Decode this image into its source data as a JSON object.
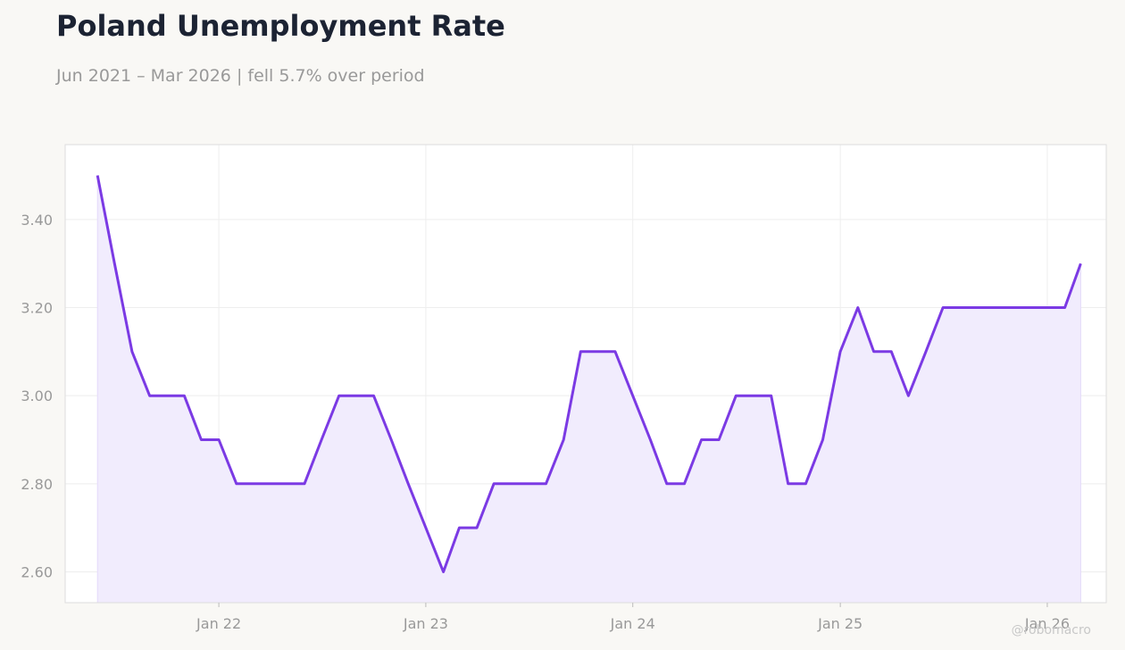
{
  "header": {
    "title": "Poland Unemployment Rate",
    "subtitle": "Jun 2021 – Mar 2026 | fell 5.7% over period"
  },
  "watermark": "@robomacro",
  "colors": {
    "line": "#7b3ae4",
    "fill": "#f1ecfd",
    "background": "#f9f8f5",
    "plot_background": "#ffffff"
  },
  "chart_data": {
    "type": "area",
    "title": "Poland Unemployment Rate",
    "subtitle": "Jun 2021 – Mar 2026 | fell 5.7% over period",
    "xlabel": "",
    "ylabel": "",
    "ylim": [
      2.53,
      3.57
    ],
    "xlim": [
      "2021-04-05",
      "2026-04-15"
    ],
    "grid": true,
    "y_ticks": [
      2.6,
      2.8,
      3.0,
      3.2,
      3.4
    ],
    "y_tick_labels": [
      "2.60",
      "2.80",
      "3.00",
      "3.20",
      "3.40"
    ],
    "x_ticks": [
      "2022-01-01",
      "2023-01-01",
      "2024-01-01",
      "2025-01-01",
      "2026-01-01"
    ],
    "x_tick_labels": [
      "Jan 22",
      "Jan 23",
      "Jan 24",
      "Jan 25",
      "Jan 26"
    ],
    "series": [
      {
        "x": [
          "2021-06-01",
          "2021-07-01",
          "2021-08-01",
          "2021-09-01",
          "2021-10-01",
          "2021-11-01",
          "2021-12-01",
          "2022-01-01",
          "2022-02-01",
          "2022-03-01",
          "2022-04-01",
          "2022-05-01",
          "2022-06-01",
          "2022-07-01",
          "2022-08-01",
          "2022-09-01",
          "2022-10-01",
          "2022-11-01",
          "2022-12-01",
          "2023-01-01",
          "2023-02-01",
          "2023-03-01",
          "2023-04-01",
          "2023-05-01",
          "2023-06-01",
          "2023-07-01",
          "2023-08-01",
          "2023-09-01",
          "2023-10-01",
          "2023-11-01",
          "2023-12-01",
          "2024-01-01",
          "2024-02-01",
          "2024-03-01",
          "2024-04-01",
          "2024-05-01",
          "2024-06-01",
          "2024-07-01",
          "2024-08-01",
          "2024-09-01",
          "2024-10-01",
          "2024-11-01",
          "2024-12-01",
          "2025-01-01",
          "2025-02-01",
          "2025-03-01",
          "2025-04-01",
          "2025-05-01",
          "2025-06-01",
          "2025-07-01",
          "2025-08-01",
          "2025-09-01",
          "2025-10-01",
          "2025-11-01",
          "2025-12-01",
          "2026-01-01",
          "2026-02-01",
          "2026-03-01"
        ],
        "values": [
          3.5,
          3.3,
          3.1,
          3.0,
          3.0,
          3.0,
          2.9,
          2.9,
          2.8,
          2.8,
          2.8,
          2.8,
          2.8,
          2.9,
          3.0,
          3.0,
          3.0,
          2.9,
          2.8,
          2.7,
          2.6,
          2.7,
          2.7,
          2.8,
          2.8,
          2.8,
          2.8,
          2.9,
          3.1,
          3.1,
          3.1,
          3.0,
          2.9,
          2.8,
          2.8,
          2.9,
          2.9,
          3.0,
          3.0,
          3.0,
          2.8,
          2.8,
          2.9,
          3.1,
          3.2,
          3.1,
          3.1,
          3.0,
          3.1,
          3.2,
          3.2,
          3.2,
          3.2,
          3.2,
          3.2,
          3.2,
          3.2,
          3.3
        ]
      }
    ]
  }
}
